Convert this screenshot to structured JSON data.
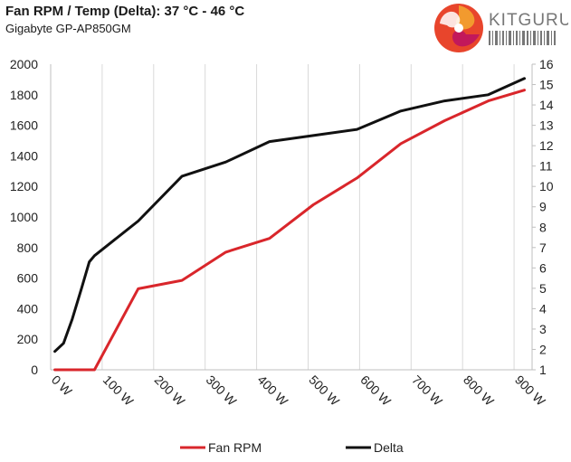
{
  "header": {
    "title": "Fan RPM / Temp (Delta): 37 °C - 46 °C",
    "subtitle": "Gigabyte GP-AP850GM"
  },
  "logo": {
    "text": "KITGURU",
    "icon": "kitguru-swirl-icon",
    "colors": [
      "#e8452c",
      "#f29a2e",
      "#c2185b"
    ]
  },
  "chart_data": {
    "type": "line",
    "title": "Fan RPM / Temp (Delta): 37 °C - 46 °C",
    "subtitle": "Gigabyte GP-AP850GM",
    "xlabel": "",
    "ylabel": "",
    "x_ticks": [
      0,
      100,
      200,
      300,
      400,
      500,
      600,
      700,
      800,
      900
    ],
    "x_tick_labels": [
      "0 W",
      "100 W",
      "200 W",
      "300 W",
      "400 W",
      "500 W",
      "600 W",
      "700 W",
      "800 W",
      "900 W"
    ],
    "xlim": [
      0,
      935
    ],
    "y_left_ticks": [
      "0",
      "200",
      "400",
      "600",
      "800",
      "1000",
      "1200",
      "1400",
      "1600",
      "1800",
      "2000"
    ],
    "y_left_lim": [
      0,
      2000
    ],
    "y_right_ticks": [
      "1",
      "2",
      "3",
      "4",
      "5",
      "6",
      "7",
      "8",
      "9",
      "10",
      "11",
      "12",
      "13",
      "14",
      "15",
      "16"
    ],
    "y_right_lim": [
      1,
      16
    ],
    "grid": "vertical",
    "legend_position": "bottom",
    "series": [
      {
        "name": "Fan RPM",
        "axis": "left",
        "color": "#d9262b",
        "x": [
          8,
          85,
          170,
          255,
          340,
          425,
          510,
          595,
          680,
          765,
          850,
          920
        ],
        "y": [
          0,
          0,
          530,
          585,
          770,
          860,
          1080,
          1255,
          1480,
          1630,
          1760,
          1830
        ]
      },
      {
        "name": "Delta",
        "axis": "right",
        "color": "#111111",
        "x": [
          8,
          25,
          42,
          60,
          75,
          85,
          170,
          255,
          340,
          425,
          510,
          595,
          680,
          765,
          850,
          920
        ],
        "y": [
          1.9,
          2.3,
          3.5,
          5.0,
          6.3,
          6.6,
          8.3,
          10.5,
          11.2,
          12.2,
          12.5,
          12.8,
          13.7,
          14.2,
          14.5,
          15.3
        ]
      }
    ]
  }
}
